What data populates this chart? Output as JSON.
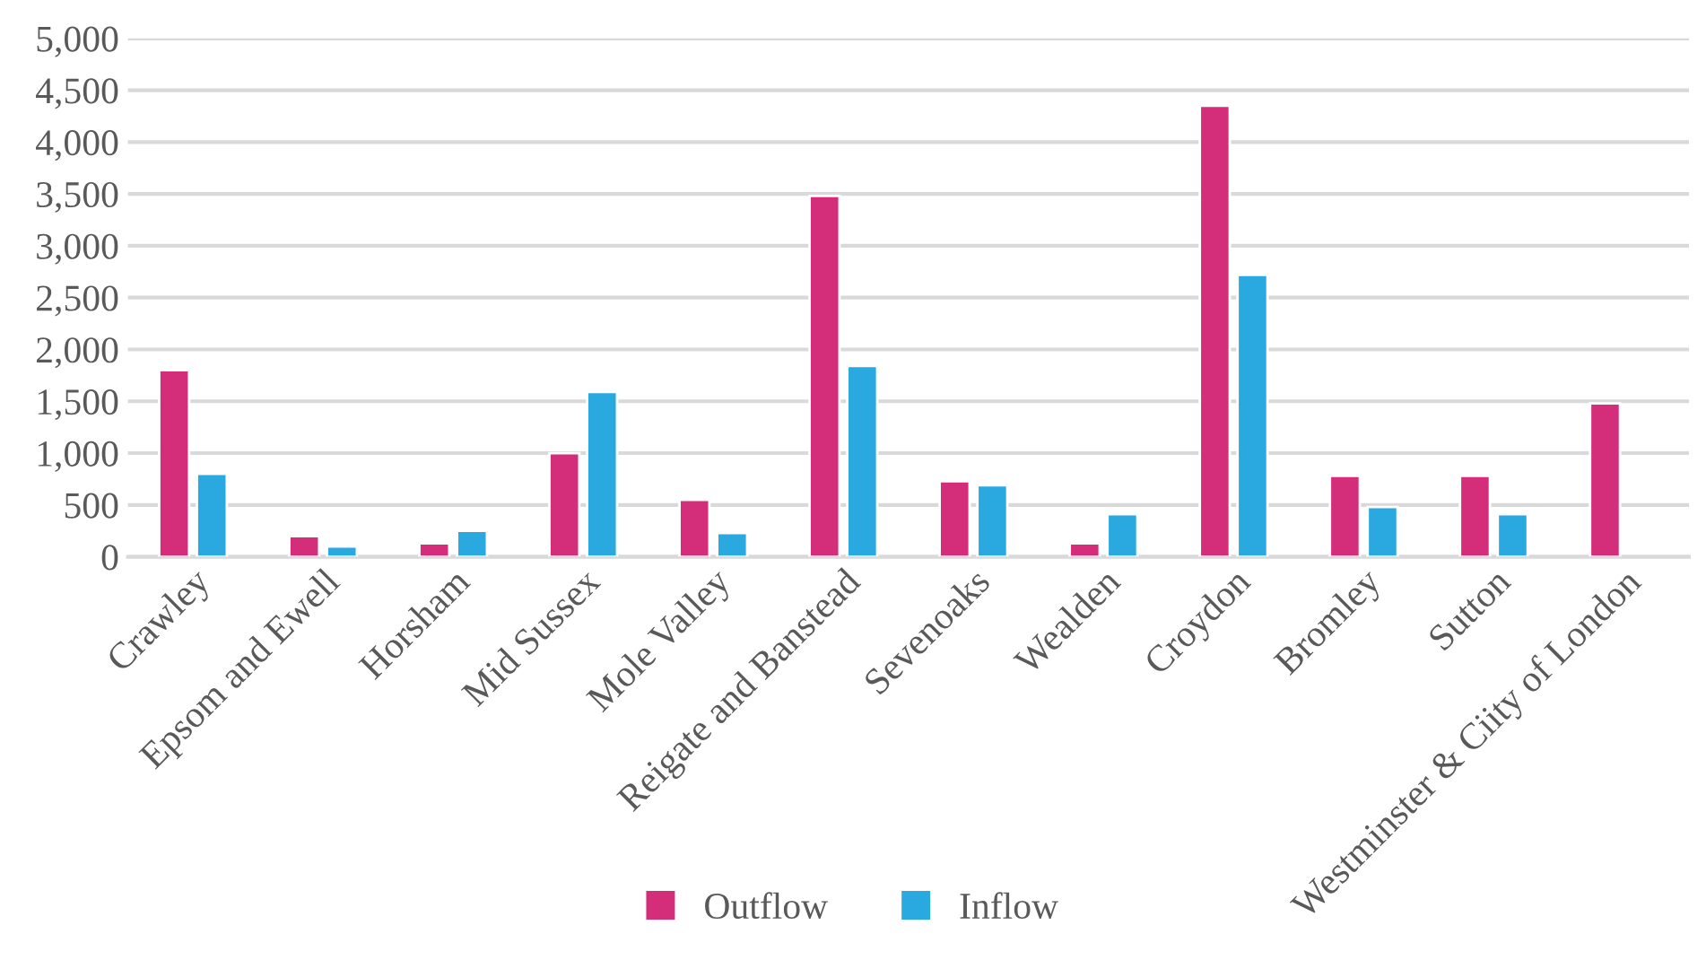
{
  "chart_data": {
    "type": "bar",
    "categories": [
      "Crawley",
      "Epsom and Ewell",
      "Horsham",
      "Mid Sussex",
      "Mole Valley",
      "Reigate and Banstead",
      "Sevenoaks",
      "Wealden",
      "Croydon",
      "Bromley",
      "Sutton",
      "Westminster & Ciity of London"
    ],
    "series": [
      {
        "name": "Outflow",
        "color": "#d42e7b",
        "values": [
          1800,
          200,
          130,
          1000,
          550,
          3480,
          730,
          130,
          4350,
          780,
          780,
          1480
        ]
      },
      {
        "name": "Inflow",
        "color": "#29a9e0",
        "values": [
          800,
          100,
          250,
          1590,
          230,
          1840,
          690,
          410,
          2720,
          480,
          410,
          null
        ]
      }
    ],
    "ylim": [
      0,
      5000
    ],
    "yticks": [
      {
        "value": 0,
        "label": "0"
      },
      {
        "value": 500,
        "label": "500"
      },
      {
        "value": 1000,
        "label": "1,000"
      },
      {
        "value": 1500,
        "label": "1,500"
      },
      {
        "value": 2000,
        "label": "2,000"
      },
      {
        "value": 2500,
        "label": "2,500"
      },
      {
        "value": 3000,
        "label": "3,000"
      },
      {
        "value": 3500,
        "label": "3,500"
      },
      {
        "value": 4000,
        "label": "4,000"
      },
      {
        "value": 4500,
        "label": "4,500"
      },
      {
        "value": 5000,
        "label": "5,000"
      }
    ],
    "grid": "y",
    "legend": "bottom"
  }
}
